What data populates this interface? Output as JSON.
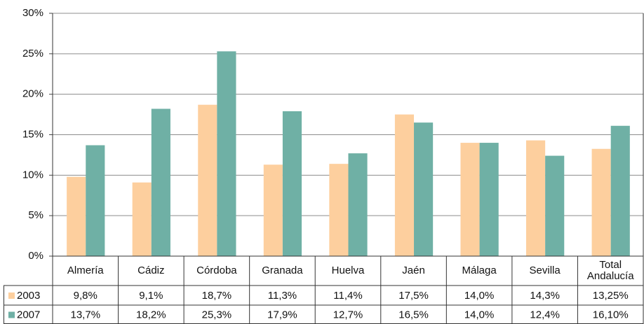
{
  "chart_data": {
    "type": "bar",
    "categories": [
      "Almería",
      "Cádiz",
      "Córdoba",
      "Granada",
      "Huelva",
      "Jaén",
      "Málaga",
      "Sevilla",
      "Total Andalucía"
    ],
    "series": [
      {
        "name": "2003",
        "color": "#fdcf9e",
        "values": [
          9.8,
          9.1,
          18.7,
          11.3,
          11.4,
          17.5,
          14.0,
          14.3,
          13.25
        ],
        "value_labels": [
          "9,8%",
          "9,1%",
          "18,7%",
          "11,3%",
          "11,4%",
          "17,5%",
          "14,0%",
          "14,3%",
          "13,25%"
        ]
      },
      {
        "name": "2007",
        "color": "#6fb0a5",
        "values": [
          13.7,
          18.2,
          25.3,
          17.9,
          12.7,
          16.5,
          14.0,
          12.4,
          16.1
        ],
        "value_labels": [
          "13,7%",
          "18,2%",
          "25,3%",
          "17,9%",
          "12,7%",
          "16,5%",
          "14,0%",
          "12,4%",
          "16,10%"
        ]
      }
    ],
    "ylim": [
      0,
      30
    ],
    "yticks": [
      {
        "value": 0,
        "label": "0%"
      },
      {
        "value": 5,
        "label": "5%"
      },
      {
        "value": 10,
        "label": "10%"
      },
      {
        "value": 15,
        "label": "15%"
      },
      {
        "value": 20,
        "label": "20%"
      },
      {
        "value": 25,
        "label": "25%"
      },
      {
        "value": 30,
        "label": "30%"
      }
    ],
    "grid": true
  }
}
